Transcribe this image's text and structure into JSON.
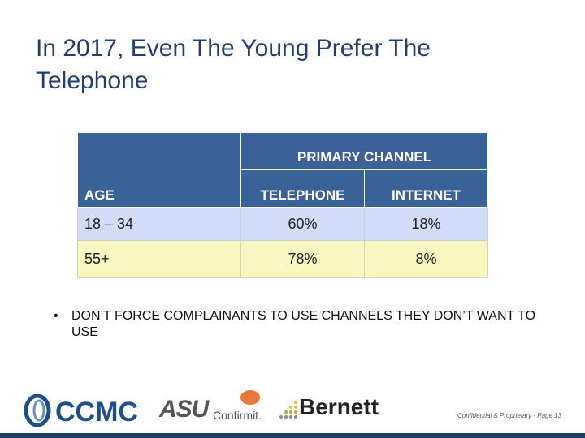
{
  "slide": {
    "title": "In 2017, Even The Young Prefer The Telephone"
  },
  "table": {
    "group_header": "PRIMARY CHANNEL",
    "columns": [
      "AGE",
      "TELEPHONE",
      "INTERNET"
    ],
    "rows": [
      {
        "age": "18 – 34",
        "telephone": "60%",
        "internet": "18%"
      },
      {
        "age": "55+",
        "telephone": "78%",
        "internet": "8%"
      }
    ]
  },
  "bullet": {
    "text": "DON’T FORCE COMPLAINANTS TO USE CHANNELS THEY DON’T WANT TO USE"
  },
  "logos": {
    "ccmc": "CCMC",
    "asu": "ASU",
    "confirmit": "Confirmit.",
    "bernett": "Bernett"
  },
  "footer": {
    "text": "Confidential & Proprietary - Page 13"
  },
  "colors": {
    "header_blue": "#3b6199",
    "row1": "#d3dcf6",
    "row2": "#fbf7c3",
    "title": "#1f3f6e"
  }
}
